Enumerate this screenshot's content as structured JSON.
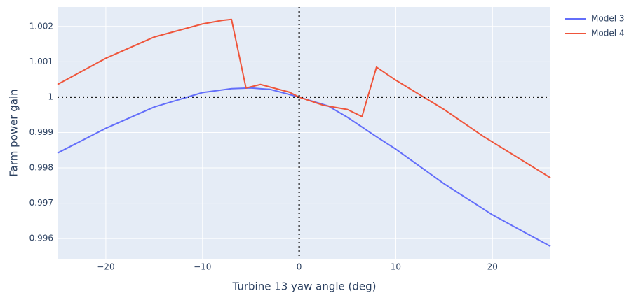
{
  "chart_data": {
    "type": "line",
    "xlabel": "Turbine 13 yaw angle (deg)",
    "ylabel": "Farm power gain",
    "xlim": [
      -25,
      26
    ],
    "ylim": [
      0.99543,
      1.00255
    ],
    "xticks": [
      {
        "value": -20,
        "label": "−20"
      },
      {
        "value": -10,
        "label": "−10"
      },
      0,
      10,
      20
    ],
    "yticks": [
      0.996,
      0.997,
      0.998,
      0.999,
      1,
      1.001,
      1.002
    ],
    "grid": true,
    "legend": "top-right",
    "reference_lines": {
      "x": 0,
      "y": 1
    },
    "series": [
      {
        "name": "Model 3",
        "color": "#636efa",
        "x": [
          -25,
          -20,
          -15,
          -10,
          -7,
          -5,
          -3,
          0,
          3,
          5,
          8,
          10,
          15,
          20,
          26
        ],
        "values": [
          0.99842,
          0.99912,
          0.99972,
          1.00013,
          1.00024,
          1.00026,
          1.00022,
          1.0,
          0.99975,
          0.99943,
          0.99888,
          0.99853,
          0.99755,
          0.99667,
          0.99578
        ]
      },
      {
        "name": "Model 4",
        "color": "#ef553b",
        "x": [
          -25,
          -20,
          -15,
          -10,
          -8,
          -7,
          -5.5,
          -4,
          -1,
          0,
          2.5,
          5,
          6.5,
          8,
          10,
          15,
          19,
          26
        ],
        "values": [
          1.00036,
          1.0011,
          1.0017,
          1.00207,
          1.00217,
          1.0022,
          1.00026,
          1.00036,
          1.00014,
          1.0,
          0.99977,
          0.99965,
          0.99945,
          1.00085,
          1.00048,
          0.99965,
          0.9989,
          0.99772
        ]
      }
    ]
  }
}
